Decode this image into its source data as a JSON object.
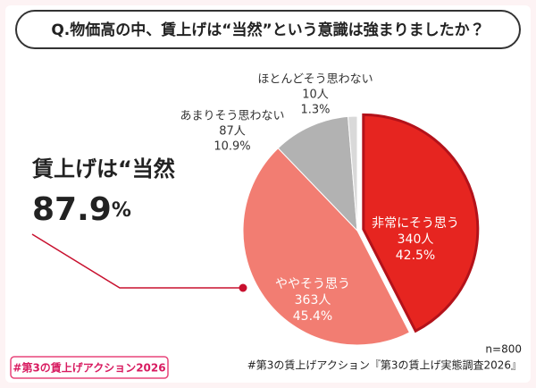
{
  "header": {
    "title": "Q.物価高の中、賃上げは“当然”という意識は強まりましたか？"
  },
  "chart_data": {
    "type": "pie",
    "categories": [
      "非常にそう思う",
      "ややそう思う",
      "あまりそう思わない",
      "ほとんどそう思わない"
    ],
    "values": [
      42.5,
      45.4,
      10.9,
      1.3
    ],
    "value_labels": [
      "42.5%",
      "45.4%",
      "10.9%",
      "1.3%"
    ],
    "count_labels": [
      "340人",
      "363人",
      "87人",
      "10人"
    ],
    "colors": [
      "#e62520",
      "#f27d72",
      "#b2b2b2",
      "#d9d9d9"
    ]
  },
  "callout": {
    "label": "賃上げは“当然",
    "value": "87.9",
    "unit": "%"
  },
  "footer": {
    "n": "n=800",
    "source": "#第3の賃上げアクション『第3の賃上げ実態調査2026』",
    "badge": "#第3の賃上げアクション2026"
  }
}
